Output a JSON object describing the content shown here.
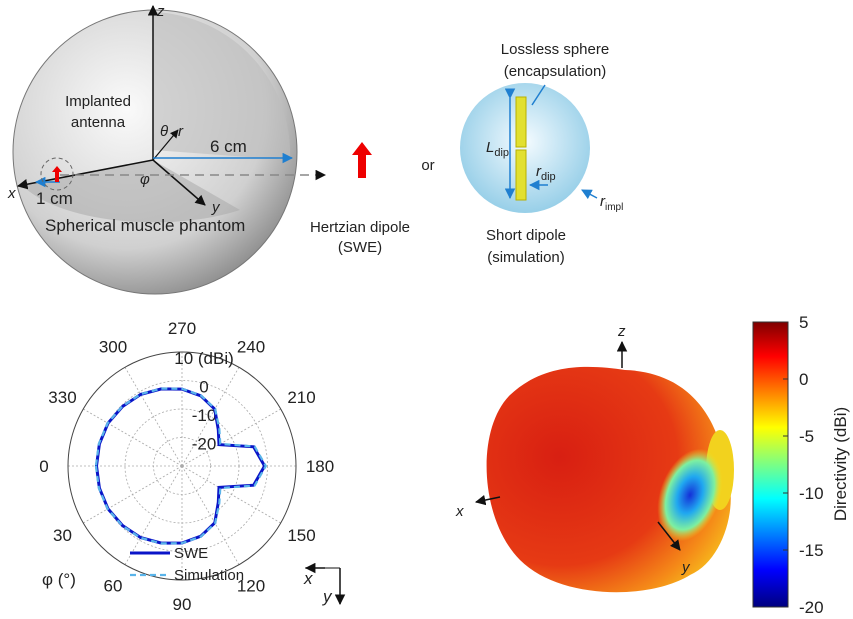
{
  "diagram": {
    "z": "z",
    "implanted": [
      "Implanted",
      "antenna"
    ],
    "theta": "θ",
    "r": "r",
    "six_cm": "6 cm",
    "phi": "φ",
    "x": "x",
    "y": "y",
    "one_cm": "1 cm",
    "phantom": "Spherical muscle phantom",
    "hertzian": [
      "Hertzian dipole",
      "(SWE)"
    ],
    "or": "or",
    "lossless": [
      "Lossless sphere",
      "(encapsulation)"
    ],
    "l_dip": {
      "main": "L",
      "sub": "dip"
    },
    "r_dip": {
      "main": "r",
      "sub": "dip"
    },
    "r_impl": {
      "main": "r",
      "sub": "impl"
    },
    "short_dipole": [
      "Short dipole",
      "(simulation)"
    ]
  },
  "pattern_3d": {
    "z": "z",
    "x": "x",
    "y": "y"
  },
  "chart_data": [
    {
      "type": "polar",
      "axis_label": "φ (°)",
      "frame_labels": {
        "x": "x",
        "y": "y"
      },
      "x": [
        0,
        15,
        30,
        45,
        60,
        75,
        90,
        105,
        120,
        135,
        150,
        165,
        180,
        195,
        210,
        225,
        240,
        255,
        270,
        285,
        300,
        315,
        330,
        345
      ],
      "series": [
        {
          "name": "SWE",
          "color": "#0a14c8",
          "values": [
            0,
            0,
            0,
            -0.5,
            -1,
            -2,
            -3,
            -4.5,
            -7,
            -12,
            -15,
            -4,
            -1,
            -4,
            -15,
            -12,
            -7,
            -4.5,
            -3,
            -2,
            -1,
            -0.5,
            0,
            0
          ]
        },
        {
          "name": "Simulation",
          "color": "#5ab4ea",
          "values": [
            0.2,
            0.2,
            0.1,
            -0.4,
            -0.9,
            -1.9,
            -2.9,
            -4.4,
            -6.8,
            -11.5,
            -14.5,
            -3.6,
            -0.6,
            -3.6,
            -14.5,
            -11.5,
            -6.8,
            -4.4,
            -2.9,
            -1.9,
            -0.9,
            -0.4,
            0.1,
            0.2
          ]
        }
      ],
      "rlim": [
        -30,
        10
      ],
      "rticks": [
        {
          "value": 10,
          "label": "10 (dBi)"
        },
        0,
        -10,
        -20
      ],
      "angle_ticks": [
        0,
        30,
        60,
        90,
        120,
        150,
        180,
        210,
        240,
        270,
        300,
        330
      ]
    },
    {
      "type": "colorbar",
      "label": "Directivity (dBi)",
      "ylim": [
        -20,
        5
      ],
      "yticks": [
        5,
        0,
        -5,
        -10,
        -15,
        -20
      ]
    }
  ]
}
